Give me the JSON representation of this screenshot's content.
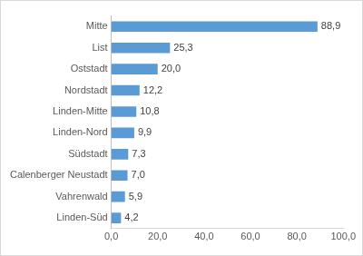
{
  "chart_data": {
    "type": "bar",
    "orientation": "horizontal",
    "categories": [
      "Mitte",
      "List",
      "Oststadt",
      "Nordstadt",
      "Linden-Mitte",
      "Linden-Nord",
      "Südstadt",
      "Calenberger Neustadt",
      "Vahrenwald",
      "Linden-Süd"
    ],
    "values": [
      88.9,
      25.3,
      20.0,
      12.2,
      10.8,
      9.9,
      7.3,
      7.0,
      5.9,
      4.2
    ],
    "value_labels": [
      "88,9",
      "25,3",
      "20,0",
      "12,2",
      "10,8",
      "9,9",
      "7,3",
      "7,0",
      "5,9",
      "4,2"
    ],
    "data_labels": true,
    "color": "#5b9bd5",
    "xlim": [
      0,
      100
    ],
    "xticks": [
      {
        "value": 0,
        "label": "0,0"
      },
      {
        "value": 20,
        "label": "20,0"
      },
      {
        "value": 40,
        "label": "40,0"
      },
      {
        "value": 60,
        "label": "60,0"
      },
      {
        "value": 80,
        "label": "80,0"
      },
      {
        "value": 100,
        "label": "100,0"
      }
    ],
    "grid": false
  }
}
